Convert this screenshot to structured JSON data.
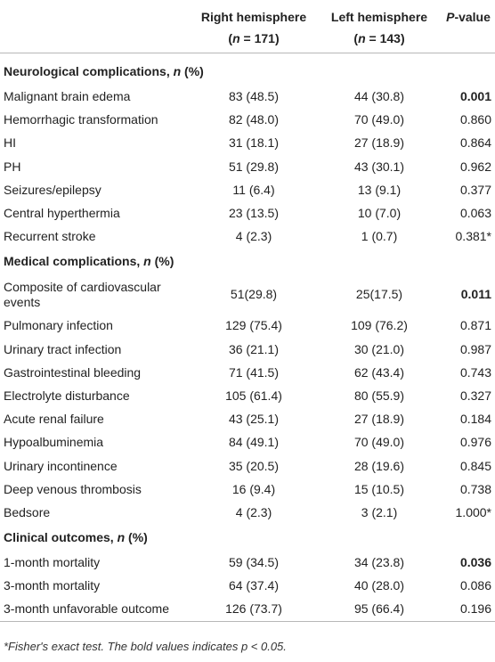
{
  "header": {
    "col1": "",
    "col2_line1": "Right hemisphere",
    "col2_line2": "(n = 171)",
    "col3_line1": "Left hemisphere",
    "col3_line2": "(n = 143)",
    "col4": "P-value"
  },
  "sections": [
    {
      "title": "Neurological complications, n (%)",
      "rows": [
        {
          "label": "Malignant brain edema",
          "right": "83 (48.5)",
          "left": "44 (30.8)",
          "p": "0.001",
          "bold": true
        },
        {
          "label": "Hemorrhagic transformation",
          "right": "82 (48.0)",
          "left": "70 (49.0)",
          "p": "0.860",
          "bold": false
        },
        {
          "label": "HI",
          "right": "31 (18.1)",
          "left": "27 (18.9)",
          "p": "0.864",
          "bold": false
        },
        {
          "label": "PH",
          "right": "51 (29.8)",
          "left": "43 (30.1)",
          "p": "0.962",
          "bold": false
        },
        {
          "label": "Seizures/epilepsy",
          "right": "11 (6.4)",
          "left": "13 (9.1)",
          "p": "0.377",
          "bold": false
        },
        {
          "label": "Central hyperthermia",
          "right": "23 (13.5)",
          "left": "10 (7.0)",
          "p": "0.063",
          "bold": false
        },
        {
          "label": "Recurrent stroke",
          "right": "4 (2.3)",
          "left": "1 (0.7)",
          "p": "0.381*",
          "bold": false
        }
      ]
    },
    {
      "title": "Medical complications, n (%)",
      "rows": [
        {
          "label": "Composite of cardiovascular events",
          "right": "51(29.8)",
          "left": "25(17.5)",
          "p": "0.011",
          "bold": true,
          "tall": true
        },
        {
          "label": "Pulmonary infection",
          "right": "129 (75.4)",
          "left": "109 (76.2)",
          "p": "0.871",
          "bold": false
        },
        {
          "label": "Urinary tract infection",
          "right": "36 (21.1)",
          "left": "30 (21.0)",
          "p": "0.987",
          "bold": false
        },
        {
          "label": "Gastrointestinal bleeding",
          "right": "71 (41.5)",
          "left": "62 (43.4)",
          "p": "0.743",
          "bold": false
        },
        {
          "label": "Electrolyte disturbance",
          "right": "105 (61.4)",
          "left": "80 (55.9)",
          "p": "0.327",
          "bold": false
        },
        {
          "label": "Acute renal failure",
          "right": "43 (25.1)",
          "left": "27 (18.9)",
          "p": "0.184",
          "bold": false
        },
        {
          "label": "Hypoalbuminemia",
          "right": "84 (49.1)",
          "left": "70 (49.0)",
          "p": "0.976",
          "bold": false
        },
        {
          "label": "Urinary incontinence",
          "right": "35 (20.5)",
          "left": "28 (19.6)",
          "p": "0.845",
          "bold": false
        },
        {
          "label": "Deep venous thrombosis",
          "right": "16 (9.4)",
          "left": "15 (10.5)",
          "p": "0.738",
          "bold": false
        },
        {
          "label": "Bedsore",
          "right": "4 (2.3)",
          "left": "3 (2.1)",
          "p": "1.000*",
          "bold": false
        }
      ]
    },
    {
      "title": "Clinical outcomes, n (%)",
      "rows": [
        {
          "label": "1-month mortality",
          "right": "59 (34.5)",
          "left": "34 (23.8)",
          "p": "0.036",
          "bold": true
        },
        {
          "label": "3-month mortality",
          "right": "64 (37.4)",
          "left": "40 (28.0)",
          "p": "0.086",
          "bold": false
        },
        {
          "label": "3-month unfavorable outcome",
          "right": "126 (73.7)",
          "left": "95 (66.4)",
          "p": "0.196",
          "bold": false
        }
      ]
    }
  ],
  "footnote": "*Fisher's exact test. The bold values indicates p < 0.05."
}
